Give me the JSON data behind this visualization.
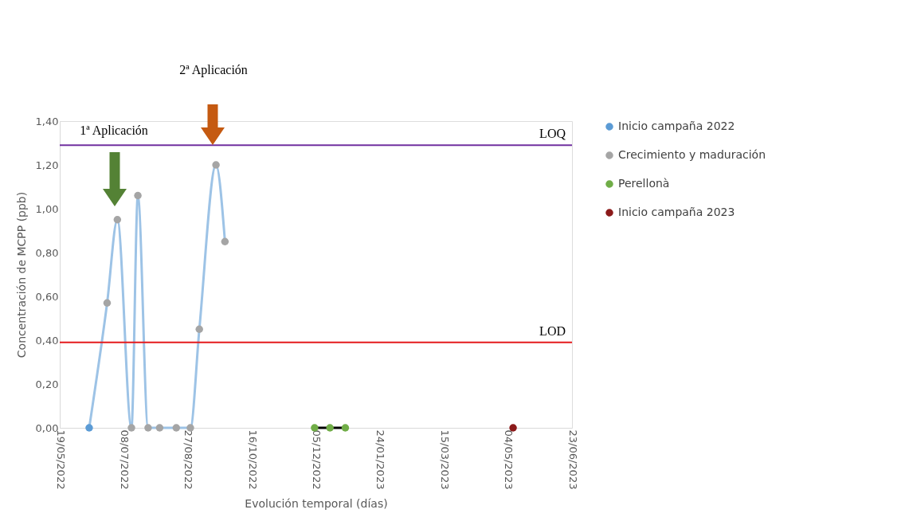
{
  "chart_data": {
    "type": "scatter",
    "xlabel": "Evolución temporal (días)",
    "ylabel": "Concentración de MCPP (ppb)",
    "series": [
      {
        "type": "line",
        "marker": "none",
        "color": "#9dc3e6",
        "x": [
          "2022-06-11",
          "2022-06-25",
          "2022-07-03",
          "2022-07-14",
          "2022-07-19",
          "2022-07-27",
          "2022-08-05",
          "2022-08-18",
          "2022-08-29",
          "2022-09-05",
          "2022-09-18",
          "2022-09-25"
        ],
        "values": [
          0,
          0.57,
          0.95,
          0,
          1.06,
          0,
          0,
          0,
          0,
          0.45,
          1.2,
          0.85
        ]
      },
      {
        "type": "line",
        "marker": "none",
        "color": "#000000",
        "x": [
          "2022-12-04",
          "2022-12-16",
          "2022-12-28"
        ],
        "values": [
          0,
          0,
          0
        ]
      },
      {
        "name": "Inicio campaña 2022",
        "color": "#5b9bd5",
        "x": [
          "2022-06-11"
        ],
        "values": [
          0
        ]
      },
      {
        "name": "Crecimiento y maduración",
        "color": "#a5a5a5",
        "x": [
          "2022-06-25",
          "2022-07-03",
          "2022-07-14",
          "2022-07-19",
          "2022-07-27",
          "2022-08-05",
          "2022-08-18",
          "2022-08-29",
          "2022-09-05",
          "2022-09-18",
          "2022-09-25"
        ],
        "values": [
          0.57,
          0.95,
          0,
          1.06,
          0,
          0,
          0,
          0,
          0.45,
          1.2,
          0.85
        ]
      },
      {
        "name": "Perellonà",
        "color": "#70ad47",
        "x": [
          "2022-12-04",
          "2022-12-16",
          "2022-12-28"
        ],
        "values": [
          0,
          0,
          0
        ]
      },
      {
        "name": "Inicio campaña 2023",
        "color": "#8b1a1a",
        "x": [
          "2023-05-08"
        ],
        "values": [
          0
        ]
      }
    ],
    "xlim": [
      "2022-05-19",
      "2023-06-23"
    ],
    "xticks": [
      {
        "value": "2022-05-19",
        "label": "19/05/2022"
      },
      {
        "value": "2022-07-08",
        "label": "08/07/2022"
      },
      {
        "value": "2022-08-27",
        "label": "27/08/2022"
      },
      {
        "value": "2022-10-16",
        "label": "16/10/2022"
      },
      {
        "value": "2022-12-05",
        "label": "05/12/2022"
      },
      {
        "value": "2023-01-24",
        "label": "24/01/2023"
      },
      {
        "value": "2023-03-15",
        "label": "15/03/2023"
      },
      {
        "value": "2023-05-04",
        "label": "04/05/2023"
      },
      {
        "value": "2023-06-23",
        "label": "23/06/2023"
      }
    ],
    "ylim": [
      0,
      1.4
    ],
    "yticks": [
      {
        "value": 0,
        "label": "0,00"
      },
      {
        "value": 0.2,
        "label": "0,20"
      },
      {
        "value": 0.4,
        "label": "0,40"
      },
      {
        "value": 0.6,
        "label": "0,60"
      },
      {
        "value": 0.8,
        "label": "0,80"
      },
      {
        "value": 1.0,
        "label": "1,00"
      },
      {
        "value": 1.2,
        "label": "1,20"
      },
      {
        "value": 1.4,
        "label": "1,40"
      }
    ],
    "ref_lines": [
      {
        "axis": "y",
        "value": 1.29,
        "label": "LOQ",
        "color": "#7030a0"
      },
      {
        "axis": "y",
        "value": 0.39,
        "label": "LOD",
        "color": "#e41a1c"
      }
    ],
    "annotations": [
      "1ª Aplicación",
      "2ª Aplicación"
    ],
    "marker": "circle",
    "grid": false,
    "legend": "right"
  }
}
